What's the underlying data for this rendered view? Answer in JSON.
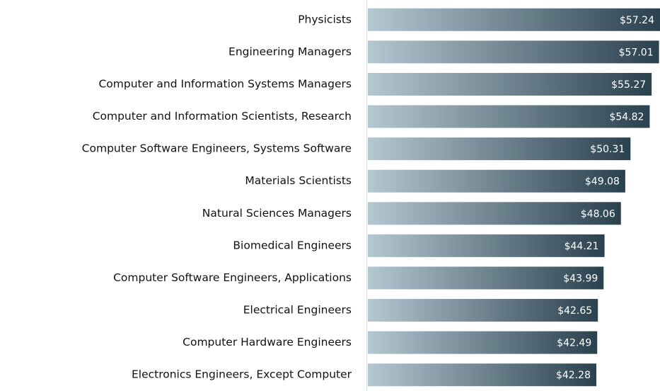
{
  "chart_data": {
    "type": "barh",
    "categories": [
      "Physicists",
      "Engineering Managers",
      "Computer and Information Systems Managers",
      "Computer and Information Scientists, Research",
      "Computer Software Engineers, Systems Software",
      "Materials Scientists",
      "Natural Sciences Managers",
      "Biomedical Engineers",
      "Computer Software Engineers, Applications",
      "Electrical Engineers",
      "Computer Hardware Engineers",
      "Electronics Engineers, Except Computer"
    ],
    "values": [
      57.24,
      57.01,
      55.27,
      54.82,
      50.31,
      49.08,
      48.06,
      44.21,
      43.99,
      42.65,
      42.49,
      42.28
    ],
    "value_labels": [
      "$57.24",
      "$57.01",
      "$55.27",
      "$54.82",
      "$50.31",
      "$49.08",
      "$48.06",
      "$44.21",
      "$43.99",
      "$42.65",
      "$42.49",
      "$42.28"
    ],
    "color_start": "#b4c8d2",
    "color_end": "#2a414e",
    "xlim": [
      -11.4,
      57.24
    ]
  }
}
